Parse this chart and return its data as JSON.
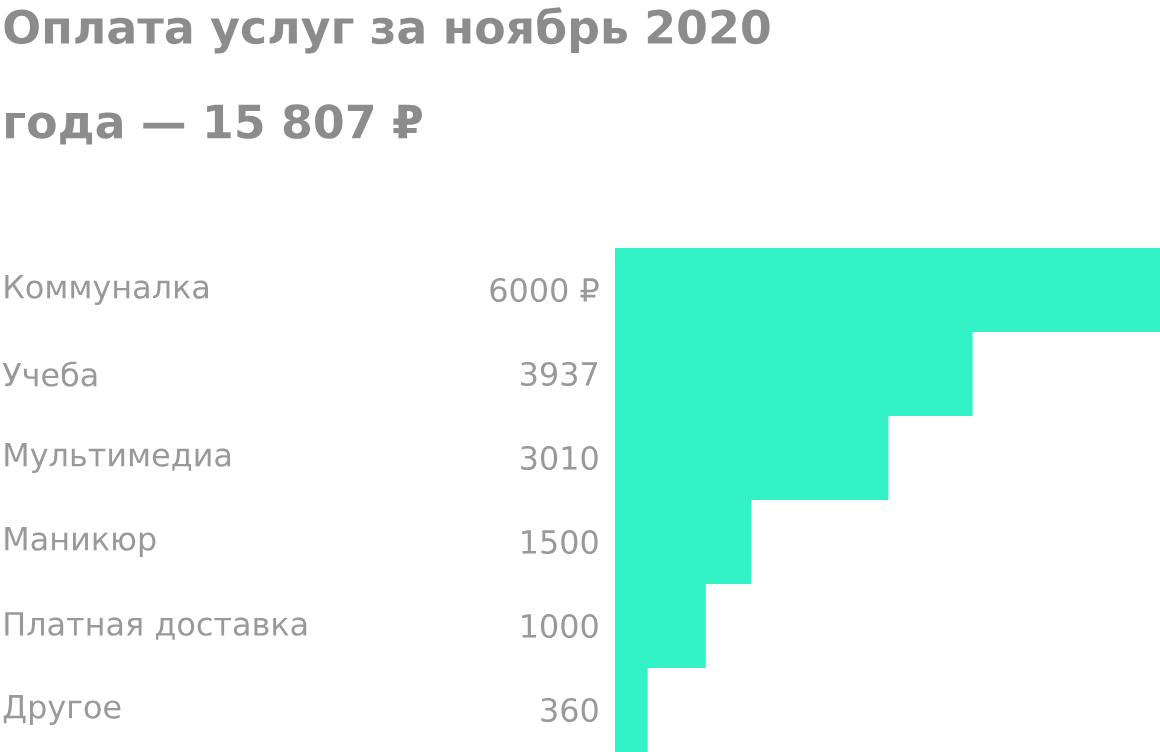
{
  "chart_data": {
    "type": "bar",
    "title": "Оплата услуг за ноябрь 2020 года — 15 807 ₽",
    "orientation": "horizontal",
    "categories": [
      "Коммуналка",
      "Учеба",
      "Мультимедиа",
      "Маникюр",
      "Платная доставка",
      "Другое"
    ],
    "values": [
      6000,
      3937,
      3010,
      1500,
      1000,
      360
    ],
    "value_labels": [
      "6000 ₽",
      "3937",
      "3010",
      "1500",
      "1000",
      "360"
    ],
    "color": "#33f2c6"
  }
}
